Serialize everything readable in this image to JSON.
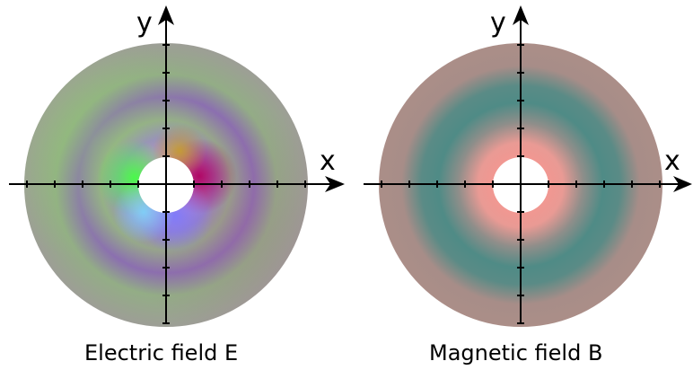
{
  "panels": [
    {
      "caption": "Electric field E",
      "x_axis_label": "x",
      "y_axis_label": "y",
      "ticks_per_side": 5
    },
    {
      "caption": "Magnetic field B",
      "x_axis_label": "x",
      "y_axis_label": "y",
      "ticks_per_side": 5
    }
  ],
  "colors": {
    "background": "#ffffff",
    "axis": "#000000",
    "e_outer": "#9c9c92",
    "e_green": "#7fae6f",
    "e_purple": "#8c6fb3",
    "e_core_green": "#44ff44",
    "e_core_red": "#b00060",
    "e_core_blue": "#7a7aff",
    "b_pink": "#ab8e88",
    "b_teal": "#4f8c87",
    "b_core": "#f49690"
  }
}
